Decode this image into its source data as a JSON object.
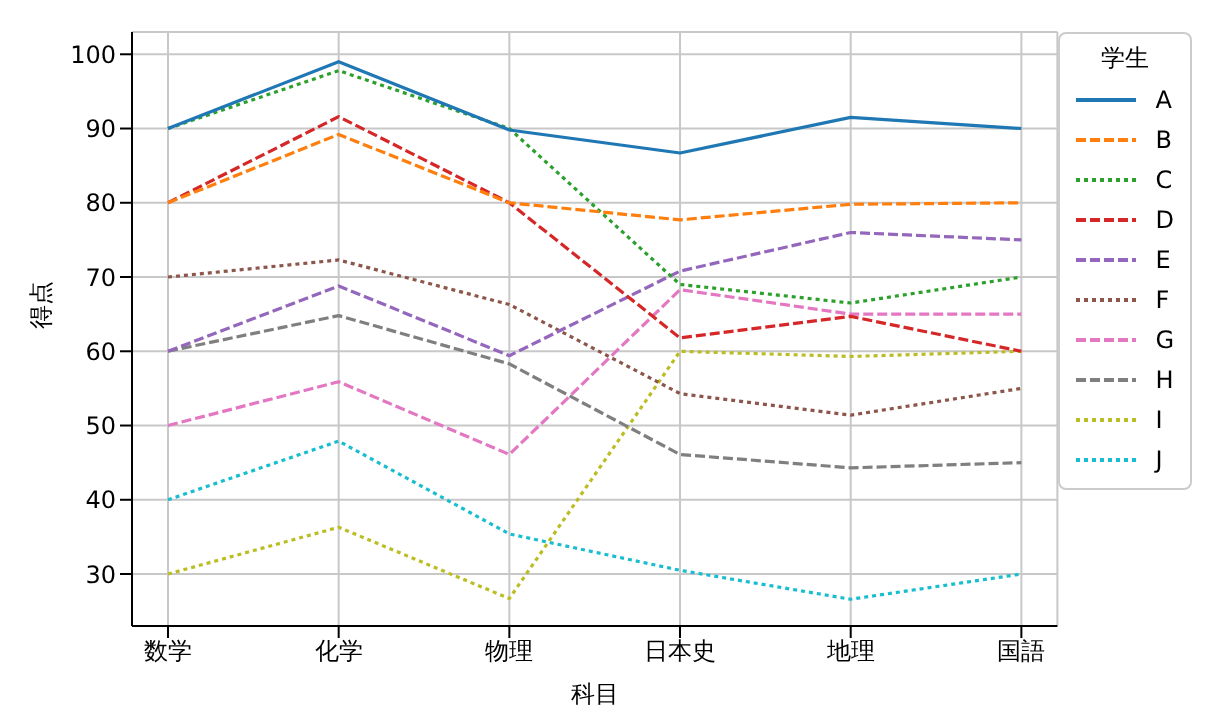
{
  "chart_data": {
    "type": "line",
    "xlabel": "科目",
    "ylabel": "得点",
    "legend_title": "学生",
    "categories": [
      "数学",
      "化学",
      "物理",
      "日本史",
      "地理",
      "国語"
    ],
    "series": [
      {
        "name": "A",
        "color": "#1f77b4",
        "line_style": "solid",
        "values": [
          90,
          99,
          89.8,
          86.7,
          91.5,
          90
        ]
      },
      {
        "name": "B",
        "color": "#ff7f0e",
        "line_style": "dashed",
        "values": [
          80,
          89.2,
          80,
          77.7,
          79.8,
          80
        ]
      },
      {
        "name": "C",
        "color": "#2ca02c",
        "line_style": "dotted",
        "values": [
          90,
          97.8,
          90,
          69,
          66.5,
          70
        ]
      },
      {
        "name": "D",
        "color": "#d62728",
        "line_style": "dashed",
        "values": [
          80,
          91.6,
          80,
          61.8,
          64.7,
          60
        ]
      },
      {
        "name": "E",
        "color": "#9467bd",
        "line_style": "dashed",
        "values": [
          60,
          68.8,
          59.4,
          70.8,
          76,
          75
        ]
      },
      {
        "name": "F",
        "color": "#8c564b",
        "line_style": "dotted",
        "values": [
          70,
          72.3,
          66.3,
          54.3,
          51.4,
          55
        ]
      },
      {
        "name": "G",
        "color": "#e377c2",
        "line_style": "dashed",
        "values": [
          50,
          55.9,
          46.1,
          68.3,
          65,
          65
        ]
      },
      {
        "name": "H",
        "color": "#7f7f7f",
        "line_style": "dashed",
        "values": [
          60,
          64.8,
          58.3,
          46.1,
          44.3,
          45
        ]
      },
      {
        "name": "I",
        "color": "#bcbd22",
        "line_style": "dotted",
        "values": [
          30,
          36.3,
          26.7,
          60,
          59.3,
          60
        ]
      },
      {
        "name": "J",
        "color": "#17becf",
        "line_style": "dotted",
        "values": [
          40,
          47.9,
          35.4,
          30.5,
          26.6,
          30
        ]
      }
    ],
    "ylim": [
      23,
      103
    ],
    "yticks": [
      30,
      40,
      50,
      60,
      70,
      80,
      90,
      100
    ],
    "grid": true,
    "legend": "right",
    "marker": "none"
  }
}
